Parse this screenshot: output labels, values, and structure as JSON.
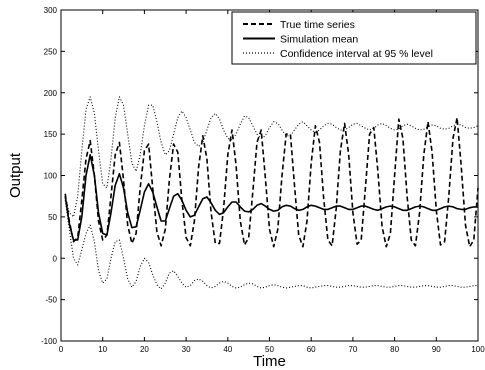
{
  "chart_data": {
    "type": "line",
    "title": "",
    "xlabel": "Time",
    "ylabel": "Output",
    "xlim": [
      0,
      100
    ],
    "ylim": [
      -100,
      300
    ],
    "xticks": [
      0,
      10,
      20,
      30,
      40,
      50,
      60,
      70,
      80,
      90,
      100
    ],
    "yticks": [
      -100,
      -50,
      0,
      50,
      100,
      150,
      200,
      250,
      300
    ],
    "grid": false,
    "legend_position": "top-right",
    "series": [
      {
        "name": "True time series",
        "style": "dashed",
        "color": "#000000",
        "x": [
          1,
          2,
          3,
          4,
          5,
          6,
          7,
          8,
          9,
          10,
          11,
          12,
          13,
          14,
          15,
          16,
          17,
          18,
          19,
          20,
          21,
          22,
          23,
          24,
          25,
          26,
          27,
          28,
          29,
          30,
          31,
          32,
          33,
          34,
          35,
          36,
          37,
          38,
          39,
          40,
          41,
          42,
          43,
          44,
          45,
          46,
          47,
          48,
          49,
          50,
          51,
          52,
          53,
          54,
          55,
          56,
          57,
          58,
          59,
          60,
          61,
          62,
          63,
          64,
          65,
          66,
          67,
          68,
          69,
          70,
          71,
          72,
          73,
          74,
          75,
          76,
          77,
          78,
          79,
          80,
          81,
          82,
          83,
          84,
          85,
          86,
          87,
          88,
          89,
          90,
          91,
          92,
          93,
          94,
          95,
          96,
          97,
          98,
          99,
          100
        ],
        "y": [
          78,
          45,
          20,
          25,
          70,
          120,
          142,
          100,
          45,
          22,
          28,
          75,
          125,
          140,
          95,
          40,
          18,
          30,
          85,
          130,
          138,
          85,
          32,
          15,
          35,
          95,
          138,
          128,
          70,
          25,
          15,
          45,
          110,
          148,
          120,
          55,
          18,
          18,
          60,
          125,
          155,
          112,
          45,
          16,
          25,
          80,
          140,
          155,
          98,
          35,
          14,
          35,
          100,
          150,
          150,
          88,
          28,
          14,
          45,
          115,
          160,
          140,
          72,
          22,
          15,
          60,
          130,
          163,
          125,
          55,
          17,
          22,
          85,
          150,
          158,
          105,
          38,
          14,
          30,
          100,
          168,
          145,
          75,
          22,
          15,
          55,
          125,
          165,
          128,
          58,
          16,
          20,
          75,
          145,
          170,
          110,
          40,
          14,
          22,
          85
        ]
      },
      {
        "name": "Simulation mean",
        "style": "solid",
        "color": "#000000",
        "x": [
          1,
          2,
          3,
          4,
          5,
          6,
          7,
          8,
          9,
          10,
          11,
          12,
          13,
          14,
          15,
          16,
          17,
          18,
          19,
          20,
          21,
          22,
          23,
          24,
          25,
          26,
          27,
          28,
          29,
          30,
          31,
          32,
          33,
          34,
          35,
          36,
          37,
          38,
          39,
          40,
          41,
          42,
          43,
          44,
          45,
          46,
          47,
          48,
          49,
          50,
          51,
          52,
          53,
          54,
          55,
          56,
          57,
          58,
          59,
          60,
          61,
          62,
          63,
          64,
          65,
          66,
          67,
          68,
          69,
          70,
          71,
          72,
          73,
          74,
          75,
          76,
          77,
          78,
          79,
          80,
          81,
          82,
          83,
          84,
          85,
          86,
          87,
          88,
          89,
          90,
          91,
          92,
          93,
          94,
          95,
          96,
          97,
          98,
          99,
          100
        ],
        "y": [
          75,
          42,
          22,
          22,
          50,
          100,
          125,
          100,
          55,
          30,
          28,
          55,
          88,
          102,
          85,
          55,
          37,
          38,
          58,
          80,
          90,
          80,
          62,
          45,
          45,
          60,
          75,
          78,
          70,
          58,
          50,
          52,
          62,
          72,
          74,
          67,
          58,
          53,
          55,
          62,
          68,
          68,
          62,
          57,
          56,
          59,
          64,
          66,
          63,
          59,
          57,
          58,
          62,
          64,
          63,
          60,
          58,
          59,
          62,
          64,
          63,
          61,
          59,
          59,
          61,
          63,
          63,
          61,
          59,
          59,
          61,
          63,
          63,
          61,
          59,
          58,
          60,
          62,
          63,
          62,
          60,
          58,
          58,
          60,
          62,
          63,
          62,
          60,
          58,
          58,
          60,
          62,
          63,
          62,
          60,
          59,
          59,
          61,
          62,
          62
        ]
      },
      {
        "name": "Confidence interval at 95 % level",
        "style": "dotted",
        "color": "#000000",
        "x": [
          1,
          2,
          3,
          4,
          5,
          6,
          7,
          8,
          9,
          10,
          11,
          12,
          13,
          14,
          15,
          16,
          17,
          18,
          19,
          20,
          21,
          22,
          23,
          24,
          25,
          26,
          27,
          28,
          29,
          30,
          31,
          32,
          33,
          34,
          35,
          36,
          37,
          38,
          39,
          40,
          41,
          42,
          43,
          44,
          45,
          46,
          47,
          48,
          49,
          50,
          51,
          52,
          53,
          54,
          55,
          56,
          57,
          58,
          59,
          60,
          61,
          62,
          63,
          64,
          65,
          66,
          67,
          68,
          69,
          70,
          71,
          72,
          73,
          74,
          75,
          76,
          77,
          78,
          79,
          80,
          81,
          82,
          83,
          84,
          85,
          86,
          87,
          88,
          89,
          90,
          91,
          92,
          93,
          94,
          95,
          96,
          97,
          98,
          99,
          100
        ],
        "y": [
          75,
          55,
          50,
          75,
          130,
          180,
          195,
          175,
          130,
          90,
          85,
          120,
          170,
          195,
          185,
          150,
          115,
          105,
          125,
          160,
          185,
          185,
          165,
          140,
          125,
          130,
          150,
          170,
          178,
          170,
          155,
          140,
          135,
          140,
          155,
          170,
          175,
          168,
          155,
          145,
          143,
          150,
          162,
          172,
          170,
          160,
          150,
          145,
          148,
          158,
          165,
          163,
          155,
          148,
          148,
          155,
          162,
          165,
          160,
          155,
          152,
          155,
          160,
          163,
          162,
          158,
          155,
          155,
          158,
          162,
          163,
          160,
          157,
          155,
          157,
          161,
          163,
          160,
          157,
          155,
          156,
          160,
          162,
          160,
          157,
          155,
          156,
          159,
          161,
          160,
          157,
          156,
          157,
          160,
          162,
          161,
          158,
          157,
          158,
          160
        ]
      },
      {
        "name": "",
        "style": "dotted",
        "color": "#000000",
        "x": [
          1,
          2,
          3,
          4,
          5,
          6,
          7,
          8,
          9,
          10,
          11,
          12,
          13,
          14,
          15,
          16,
          17,
          18,
          19,
          20,
          21,
          22,
          23,
          24,
          25,
          26,
          27,
          28,
          29,
          30,
          31,
          32,
          33,
          34,
          35,
          36,
          37,
          38,
          39,
          40,
          41,
          42,
          43,
          44,
          45,
          46,
          47,
          48,
          49,
          50,
          51,
          52,
          53,
          54,
          55,
          56,
          57,
          58,
          59,
          60,
          61,
          62,
          63,
          64,
          65,
          66,
          67,
          68,
          69,
          70,
          71,
          72,
          73,
          74,
          75,
          76,
          77,
          78,
          79,
          80,
          81,
          82,
          83,
          84,
          85,
          86,
          87,
          88,
          89,
          90,
          91,
          92,
          93,
          94,
          95,
          96,
          97,
          98,
          99,
          100
        ],
        "y": [
          70,
          35,
          0,
          -8,
          10,
          30,
          40,
          20,
          -15,
          -30,
          -25,
          0,
          20,
          22,
          0,
          -25,
          -35,
          -28,
          -10,
          0,
          -5,
          -20,
          -32,
          -37,
          -30,
          -18,
          -15,
          -22,
          -30,
          -35,
          -33,
          -27,
          -25,
          -28,
          -33,
          -36,
          -34,
          -30,
          -28,
          -30,
          -34,
          -36,
          -35,
          -32,
          -30,
          -31,
          -34,
          -36,
          -35,
          -33,
          -32,
          -33,
          -35,
          -36,
          -35,
          -34,
          -33,
          -33,
          -35,
          -36,
          -35,
          -34,
          -33,
          -33,
          -34,
          -35,
          -35,
          -34,
          -33,
          -33,
          -34,
          -35,
          -35,
          -34,
          -33,
          -33,
          -34,
          -35,
          -35,
          -34,
          -33,
          -33,
          -34,
          -35,
          -35,
          -34,
          -33,
          -33,
          -34,
          -35,
          -35,
          -34,
          -33,
          -33,
          -34,
          -35,
          -35,
          -34,
          -33,
          -33
        ]
      }
    ]
  }
}
